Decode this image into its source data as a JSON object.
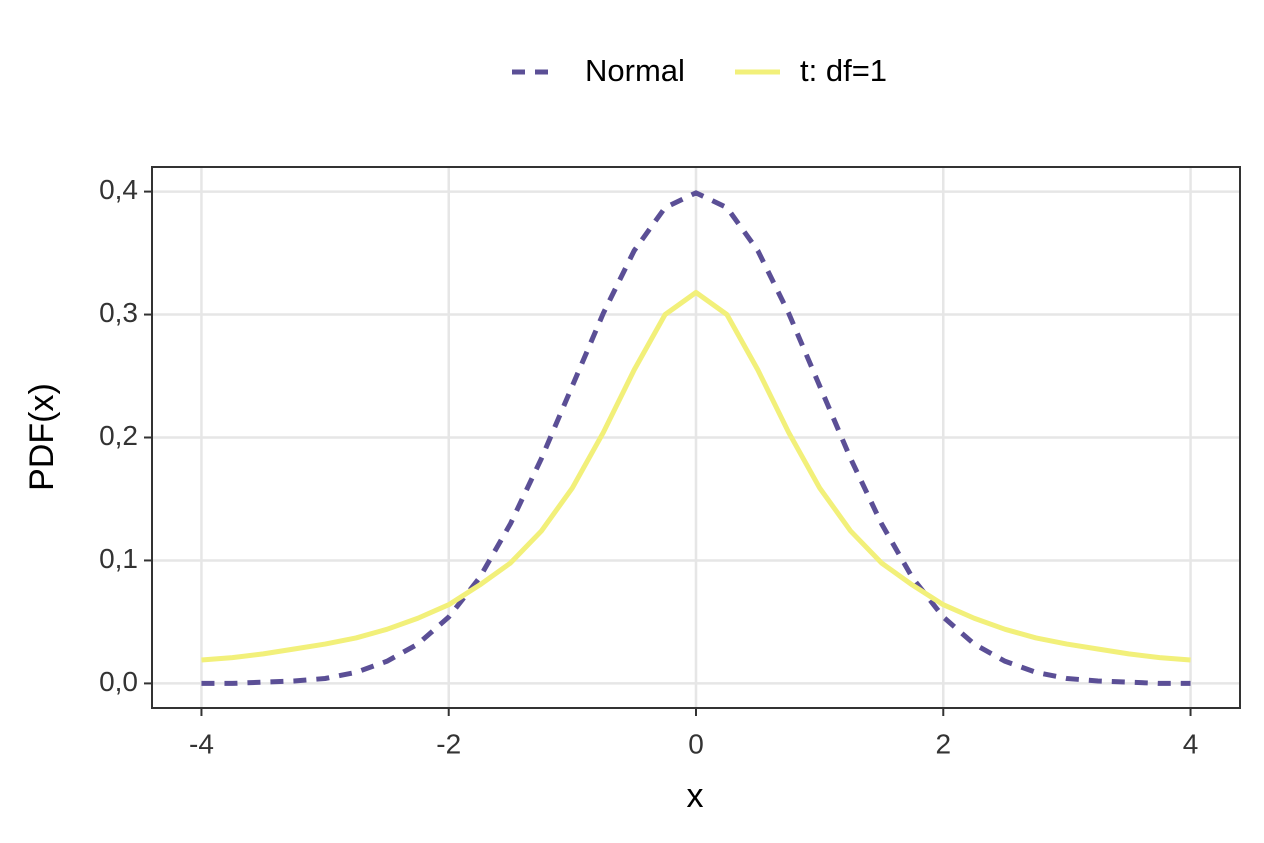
{
  "chart_data": {
    "type": "line",
    "x_label": "x",
    "y_label": "PDF(x)",
    "x": [
      -4,
      -3.75,
      -3.5,
      -3.25,
      -3,
      -2.75,
      -2.5,
      -2.25,
      -2,
      -1.75,
      -1.5,
      -1.25,
      -1,
      -0.75,
      -0.5,
      -0.25,
      0,
      0.25,
      0.5,
      0.75,
      1,
      1.25,
      1.5,
      1.75,
      2,
      2.25,
      2.5,
      2.75,
      3,
      3.25,
      3.5,
      3.75,
      4
    ],
    "series": [
      {
        "name": "Normal",
        "color": "#5b4f96",
        "dash": true,
        "values": [
          0.0,
          0.0,
          0.001,
          0.002,
          0.004,
          0.009,
          0.018,
          0.032,
          0.054,
          0.086,
          0.13,
          0.183,
          0.242,
          0.301,
          0.352,
          0.387,
          0.399,
          0.387,
          0.352,
          0.301,
          0.242,
          0.183,
          0.13,
          0.086,
          0.054,
          0.032,
          0.018,
          0.009,
          0.004,
          0.002,
          0.001,
          0.0,
          0.0
        ]
      },
      {
        "name": "t: df=1",
        "color": "#f2f07a",
        "dash": false,
        "values": [
          0.019,
          0.021,
          0.024,
          0.028,
          0.032,
          0.037,
          0.044,
          0.053,
          0.064,
          0.08,
          0.098,
          0.124,
          0.159,
          0.204,
          0.255,
          0.3,
          0.318,
          0.3,
          0.255,
          0.204,
          0.159,
          0.124,
          0.098,
          0.08,
          0.064,
          0.053,
          0.044,
          0.037,
          0.032,
          0.028,
          0.024,
          0.021,
          0.019
        ]
      }
    ],
    "xlim": [
      -4.4,
      4.4
    ],
    "xticks": [
      -4,
      -2,
      0,
      2,
      4
    ],
    "ylim": [
      -0.02,
      0.42
    ],
    "yticks": [
      {
        "value": 0,
        "label": "0,0"
      },
      {
        "value": 0.1,
        "label": "0,1"
      },
      {
        "value": 0.2,
        "label": "0,2"
      },
      {
        "value": 0.3,
        "label": "0,3"
      },
      {
        "value": 0.4,
        "label": "0,4"
      }
    ],
    "grid": true,
    "legend": "top"
  }
}
